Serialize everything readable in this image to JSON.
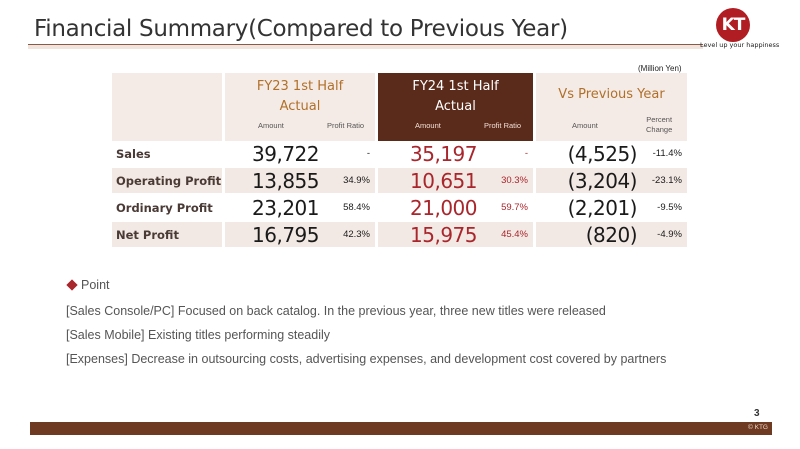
{
  "header": {
    "title": "Financial Summary(Compared to Previous Year)",
    "logo_text": "KT",
    "tagline": "Level up your happiness"
  },
  "table": {
    "unit": "(Million Yen)",
    "columns": {
      "fy23": {
        "title_line1": "FY23 1st Half",
        "title_line2": "Actual",
        "amount": "Amount",
        "ratio": "Profit Ratio"
      },
      "fy24": {
        "title_line1": "FY24 1st Half",
        "title_line2": "Actual",
        "amount": "Amount",
        "ratio": "Profit Ratio"
      },
      "vs": {
        "title": "Vs Previous Year",
        "amount": "Amount",
        "pct_line1": "Percent",
        "pct_line2": "Change"
      }
    },
    "rows": [
      {
        "label": "Sales",
        "fy23_amount": "39,722",
        "fy23_ratio": "-",
        "fy24_amount": "35,197",
        "fy24_ratio": "-",
        "vs_amount": "(4,525)",
        "vs_pct": "-11.4%"
      },
      {
        "label": "Operating Profit",
        "fy23_amount": "13,855",
        "fy23_ratio": "34.9%",
        "fy24_amount": "10,651",
        "fy24_ratio": "30.3%",
        "vs_amount": "(3,204)",
        "vs_pct": "-23.1%"
      },
      {
        "label": "Ordinary Profit",
        "fy23_amount": "23,201",
        "fy23_ratio": "58.4%",
        "fy24_amount": "21,000",
        "fy24_ratio": "59.7%",
        "vs_amount": "(2,201)",
        "vs_pct": "-9.5%"
      },
      {
        "label": "Net Profit",
        "fy23_amount": "16,795",
        "fy23_ratio": "42.3%",
        "fy24_amount": "15,975",
        "fy24_ratio": "45.4%",
        "vs_amount": "(820)",
        "vs_pct": "-4.9%"
      }
    ]
  },
  "points": {
    "heading": "Point",
    "lines": [
      "[Sales Console/PC] Focused on back catalog. In the previous year, three new titles were released",
      "[Sales Mobile] Existing titles performing steadily",
      "[Expenses] Decrease in outsourcing costs, advertising expenses, and development cost covered by partners"
    ]
  },
  "footer": {
    "page_number": "3",
    "copyright": "© KTG"
  },
  "colors": {
    "accent_dark": "#5a2a1a",
    "accent_red": "#a8262c",
    "shade": "#f3e9e4"
  }
}
